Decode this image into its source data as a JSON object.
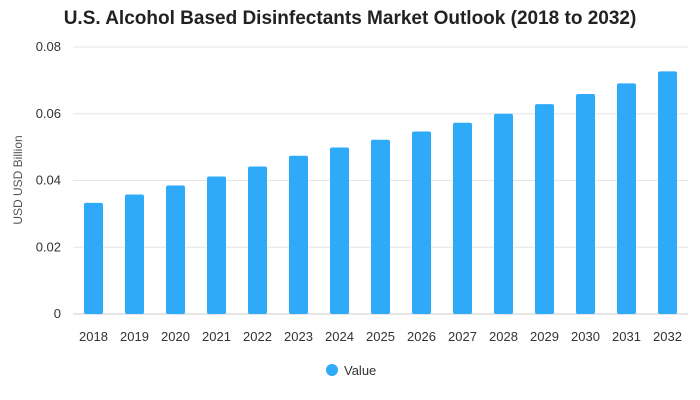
{
  "chart_data": {
    "type": "bar",
    "title": "U.S. Alcohol Based Disinfectants Market Outlook (2018 to 2032)",
    "xlabel": "",
    "ylabel": "USD USD Billion",
    "categories": [
      "2018",
      "2019",
      "2020",
      "2021",
      "2022",
      "2023",
      "2024",
      "2025",
      "2026",
      "2027",
      "2028",
      "2029",
      "2030",
      "2031",
      "2032"
    ],
    "series": [
      {
        "name": "Value",
        "values": [
          0.0333,
          0.0358,
          0.0385,
          0.0412,
          0.0442,
          0.0474,
          0.0499,
          0.0522,
          0.0547,
          0.0573,
          0.06,
          0.0629,
          0.0659,
          0.0691,
          0.0727
        ],
        "color": "#2eaaf9"
      }
    ],
    "ylim": [
      0,
      0.08
    ],
    "yticks": [
      "0",
      "0.02",
      "0.04",
      "0.06",
      "0.08"
    ],
    "grid": true,
    "legend_position": "bottom-center"
  }
}
